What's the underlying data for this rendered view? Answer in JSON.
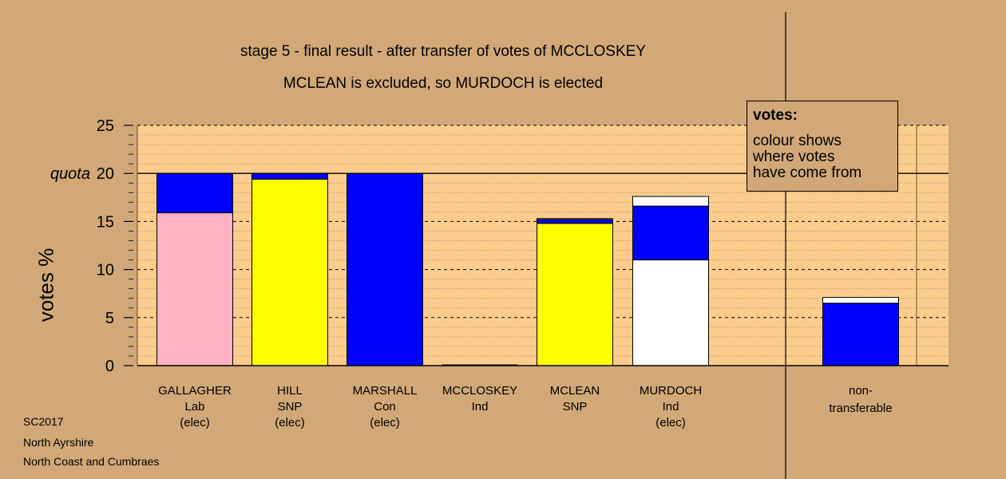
{
  "title_line1": "stage 5 - final result - after transfer of votes of MCCLOSKEY",
  "title_line2": "MCLEAN is excluded, so MURDOCH is elected",
  "footer": [
    "SC2017",
    "North Ayrshire",
    "North Coast and Cumbraes"
  ],
  "legend": {
    "title": "votes:",
    "text": [
      "colour shows",
      "where votes",
      "have come from"
    ]
  },
  "colors": {
    "background": "#d2a878",
    "plot_area": "#fccc8c",
    "lab": "#ffb2c4",
    "snp": "#ffff00",
    "con": "#0000ff",
    "ind": "#ffffff"
  },
  "chart_data": {
    "type": "bar",
    "stacked": true,
    "ylabel": "votes %",
    "ylim": [
      0,
      25
    ],
    "yticks": [
      0,
      5,
      10,
      15,
      20,
      25
    ],
    "quota": 20,
    "quota_label": "quota",
    "grid": true,
    "candidates": [
      {
        "name": "GALLAGHER",
        "party": "Lab",
        "status": "(elec)",
        "segments": [
          {
            "color": "#ffb2c4",
            "value": 15.9
          },
          {
            "color": "#0000ff",
            "value": 4.1
          }
        ]
      },
      {
        "name": "HILL",
        "party": "SNP",
        "status": "(elec)",
        "segments": [
          {
            "color": "#ffff00",
            "value": 19.4
          },
          {
            "color": "#0000ff",
            "value": 0.6
          }
        ]
      },
      {
        "name": "MARSHALL",
        "party": "Con",
        "status": "(elec)",
        "segments": [
          {
            "color": "#0000ff",
            "value": 20.0
          }
        ]
      },
      {
        "name": "MCCLOSKEY",
        "party": "Ind",
        "status": "",
        "segments": []
      },
      {
        "name": "MCLEAN",
        "party": "SNP",
        "status": "",
        "segments": [
          {
            "color": "#ffff00",
            "value": 14.8
          },
          {
            "color": "#0000ff",
            "value": 0.4
          },
          {
            "color": "#ffffff",
            "value": 0.1
          }
        ]
      },
      {
        "name": "MURDOCH",
        "party": "Ind",
        "status": "(elec)",
        "segments": [
          {
            "color": "#ffffff",
            "value": 11.0
          },
          {
            "color": "#0000ff",
            "value": 5.6
          },
          {
            "color": "#ffffff",
            "value": 1.0
          }
        ]
      }
    ],
    "nontransferable": {
      "label_line1": "non-",
      "label_line2": "transferable",
      "segments": [
        {
          "color": "#0000ff",
          "value": 6.5
        },
        {
          "color": "#ffffff",
          "value": 0.6
        }
      ]
    }
  }
}
